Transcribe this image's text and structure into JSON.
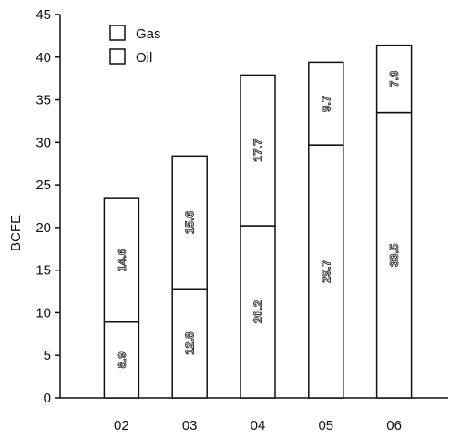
{
  "chart_data": {
    "type": "bar",
    "stacked": true,
    "categories": [
      "02",
      "03",
      "04",
      "05",
      "06"
    ],
    "series": [
      {
        "name": "Oil",
        "values": [
          8.9,
          12.8,
          20.2,
          29.7,
          33.5
        ],
        "labels": [
          "8.9",
          "12.8",
          "20.2",
          "29.7",
          "33.5"
        ]
      },
      {
        "name": "Gas",
        "values": [
          14.6,
          15.6,
          17.7,
          9.7,
          7.9
        ],
        "labels": [
          "14.6",
          "15.6",
          "17.7",
          "9.7",
          "7.9"
        ]
      }
    ],
    "ylabel": "BCFE",
    "ylim": [
      0,
      45
    ],
    "yticks": [
      "0",
      "5",
      "10",
      "15",
      "20",
      "25",
      "30",
      "35",
      "40",
      "45"
    ],
    "legend": {
      "position": "top-left",
      "entries": [
        "Gas",
        "Oil"
      ]
    },
    "grid": false,
    "colors": {
      "bar_fill": "#ffffff",
      "stroke": "#111111"
    }
  }
}
